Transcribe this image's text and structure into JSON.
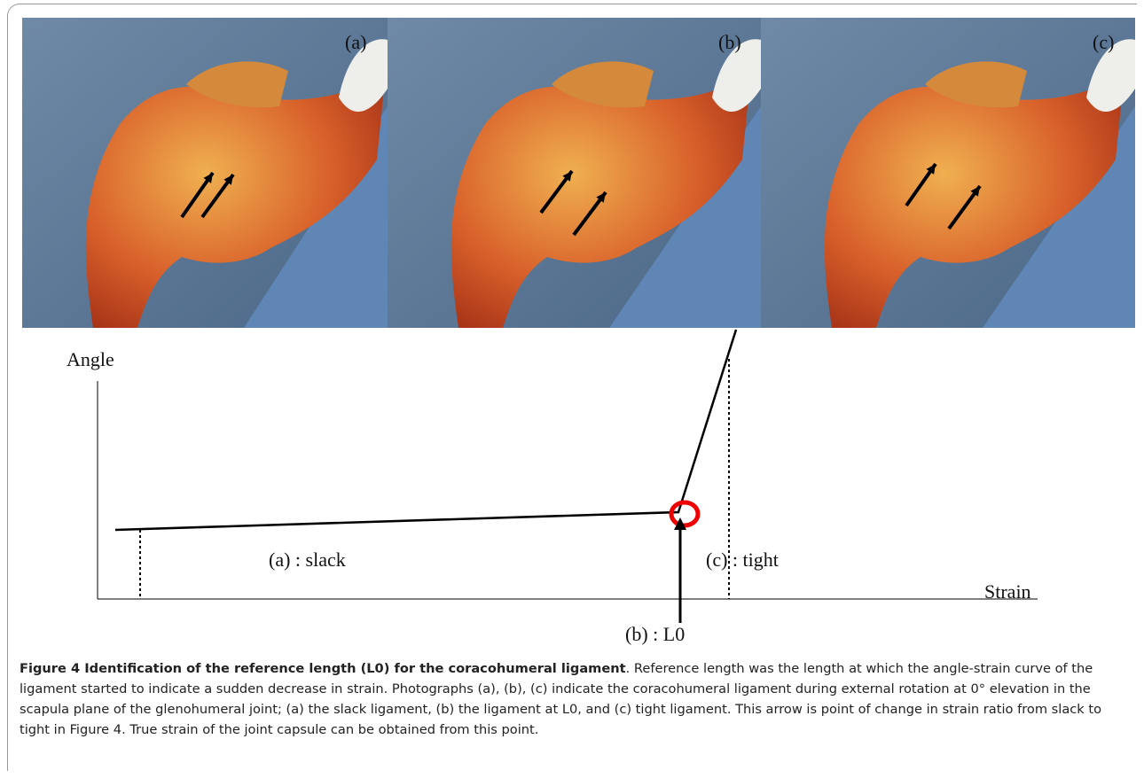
{
  "figure": {
    "panels": [
      {
        "label": "(a)"
      },
      {
        "label": "(b)"
      },
      {
        "label": "(c)"
      }
    ],
    "diagram": {
      "y_axis_label": "Angle",
      "x_axis_label": "Strain",
      "annotations": [
        "(a) : slack",
        "(c) : tight",
        "(b) : L0"
      ]
    },
    "caption": {
      "title": "Figure 4 Identification of the reference length (L0) for the coracohumeral ligament",
      "text": ". Reference length was the length at which the angle-strain curve of the ligament started to indicate a sudden decrease in strain. Photographs (a), (b), (c) indicate the coracohumeral ligament during external rotation at 0° elevation in the scapula plane of the glenohumeral joint; (a) the slack ligament, (b) the ligament at L0, and (c) tight ligament. This arrow is point of change in strain ratio from slack to tight in Figure 4. True strain of the joint capsule can be obtained from this point."
    }
  }
}
